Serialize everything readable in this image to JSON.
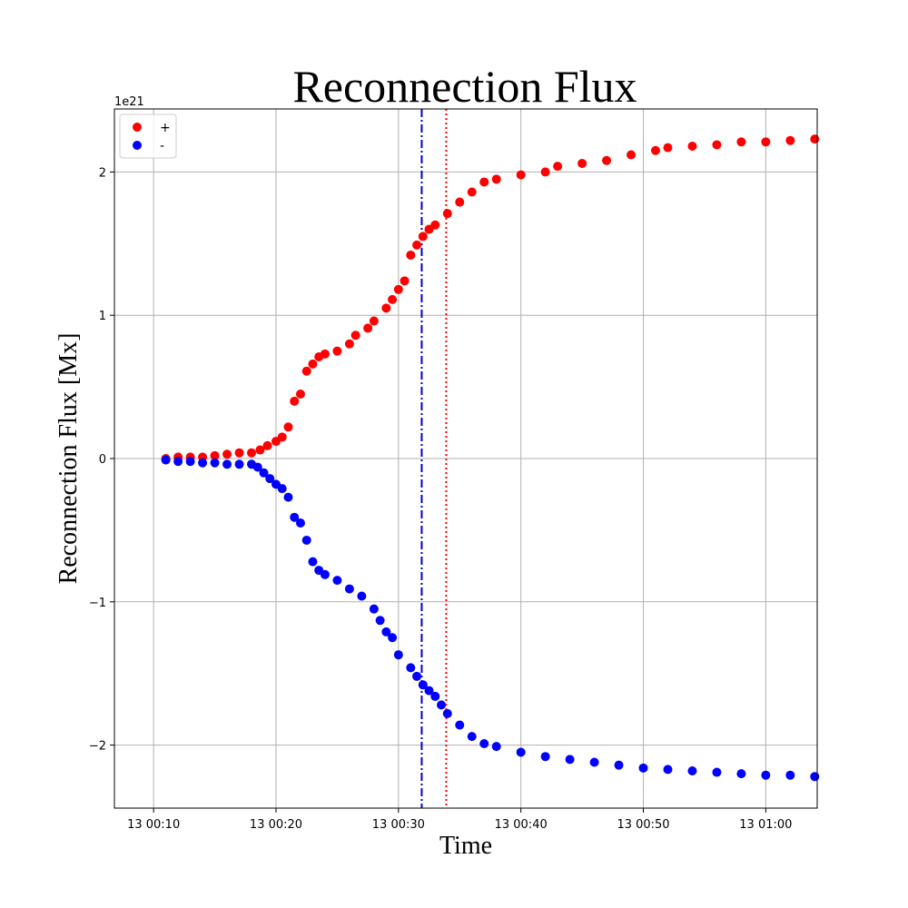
{
  "chart_data": {
    "type": "scatter",
    "title": "Reconnection Flux",
    "xlabel": "Time",
    "ylabel": "Reconnection Flux [Mx]",
    "y_offset_label": "1e21",
    "x_unit": "minutes after 13 00:00",
    "xlim": [
      6.8,
      64.2
    ],
    "ylim": [
      -2.44,
      2.44
    ],
    "grid": true,
    "legend_position": "upper-left",
    "x_ticks": [
      {
        "value": 10,
        "label": "13 00:10"
      },
      {
        "value": 20,
        "label": "13 00:20"
      },
      {
        "value": 30,
        "label": "13 00:30"
      },
      {
        "value": 40,
        "label": "13 00:40"
      },
      {
        "value": 50,
        "label": "13 00:50"
      },
      {
        "value": 60,
        "label": "13 01:00"
      }
    ],
    "y_ticks": [
      {
        "value": -2,
        "label": "−2"
      },
      {
        "value": -1,
        "label": "−1"
      },
      {
        "value": 0,
        "label": "0"
      },
      {
        "value": 1,
        "label": "1"
      },
      {
        "value": 2,
        "label": "2"
      }
    ],
    "vlines": [
      {
        "x": 31.9,
        "color": "#0000cc",
        "style": "dashdot"
      },
      {
        "x": 33.9,
        "color": "#ff0000",
        "style": "dotted"
      }
    ],
    "series": [
      {
        "name": "+",
        "color": "#ff0000",
        "points": [
          [
            11,
            0.0
          ],
          [
            12,
            0.01
          ],
          [
            13,
            0.01
          ],
          [
            14,
            0.01
          ],
          [
            15,
            0.02
          ],
          [
            16,
            0.03
          ],
          [
            17,
            0.04
          ],
          [
            18,
            0.04
          ],
          [
            18.7,
            0.06
          ],
          [
            19.3,
            0.09
          ],
          [
            20,
            0.12
          ],
          [
            20.5,
            0.15
          ],
          [
            21,
            0.22
          ],
          [
            21.5,
            0.4
          ],
          [
            22,
            0.45
          ],
          [
            22.5,
            0.61
          ],
          [
            23,
            0.66
          ],
          [
            23.5,
            0.71
          ],
          [
            24,
            0.73
          ],
          [
            25,
            0.75
          ],
          [
            26,
            0.8
          ],
          [
            26.5,
            0.86
          ],
          [
            27.5,
            0.91
          ],
          [
            28,
            0.96
          ],
          [
            29,
            1.05
          ],
          [
            29.5,
            1.11
          ],
          [
            30,
            1.18
          ],
          [
            30.5,
            1.24
          ],
          [
            31,
            1.42
          ],
          [
            31.5,
            1.49
          ],
          [
            32,
            1.55
          ],
          [
            32.5,
            1.6
          ],
          [
            33,
            1.63
          ],
          [
            34,
            1.71
          ],
          [
            35,
            1.79
          ],
          [
            36,
            1.86
          ],
          [
            37,
            1.93
          ],
          [
            38,
            1.95
          ],
          [
            40,
            1.98
          ],
          [
            42,
            2.0
          ],
          [
            43,
            2.04
          ],
          [
            45,
            2.06
          ],
          [
            47,
            2.08
          ],
          [
            49,
            2.12
          ],
          [
            51,
            2.15
          ],
          [
            52,
            2.17
          ],
          [
            54,
            2.18
          ],
          [
            56,
            2.19
          ],
          [
            58,
            2.21
          ],
          [
            60,
            2.21
          ],
          [
            62,
            2.22
          ],
          [
            64,
            2.23
          ]
        ]
      },
      {
        "name": "-",
        "color": "#0000ff",
        "points": [
          [
            11,
            -0.01
          ],
          [
            12,
            -0.02
          ],
          [
            13,
            -0.02
          ],
          [
            14,
            -0.03
          ],
          [
            15,
            -0.03
          ],
          [
            16,
            -0.04
          ],
          [
            17,
            -0.04
          ],
          [
            18,
            -0.04
          ],
          [
            18.5,
            -0.06
          ],
          [
            19,
            -0.1
          ],
          [
            19.5,
            -0.14
          ],
          [
            20,
            -0.18
          ],
          [
            20.5,
            -0.21
          ],
          [
            21,
            -0.27
          ],
          [
            21.5,
            -0.41
          ],
          [
            22,
            -0.45
          ],
          [
            22.5,
            -0.57
          ],
          [
            23,
            -0.72
          ],
          [
            23.5,
            -0.78
          ],
          [
            24,
            -0.81
          ],
          [
            25,
            -0.85
          ],
          [
            26,
            -0.91
          ],
          [
            27,
            -0.96
          ],
          [
            28,
            -1.05
          ],
          [
            28.5,
            -1.13
          ],
          [
            29,
            -1.21
          ],
          [
            29.5,
            -1.25
          ],
          [
            30,
            -1.37
          ],
          [
            31,
            -1.46
          ],
          [
            31.5,
            -1.52
          ],
          [
            32,
            -1.58
          ],
          [
            32.5,
            -1.62
          ],
          [
            33,
            -1.66
          ],
          [
            33.5,
            -1.72
          ],
          [
            34,
            -1.78
          ],
          [
            35,
            -1.86
          ],
          [
            36,
            -1.94
          ],
          [
            37,
            -1.99
          ],
          [
            38,
            -2.01
          ],
          [
            40,
            -2.05
          ],
          [
            42,
            -2.08
          ],
          [
            44,
            -2.1
          ],
          [
            46,
            -2.12
          ],
          [
            48,
            -2.14
          ],
          [
            50,
            -2.16
          ],
          [
            52,
            -2.17
          ],
          [
            54,
            -2.18
          ],
          [
            56,
            -2.19
          ],
          [
            58,
            -2.2
          ],
          [
            60,
            -2.21
          ],
          [
            62,
            -2.21
          ],
          [
            64,
            -2.22
          ]
        ]
      }
    ]
  }
}
